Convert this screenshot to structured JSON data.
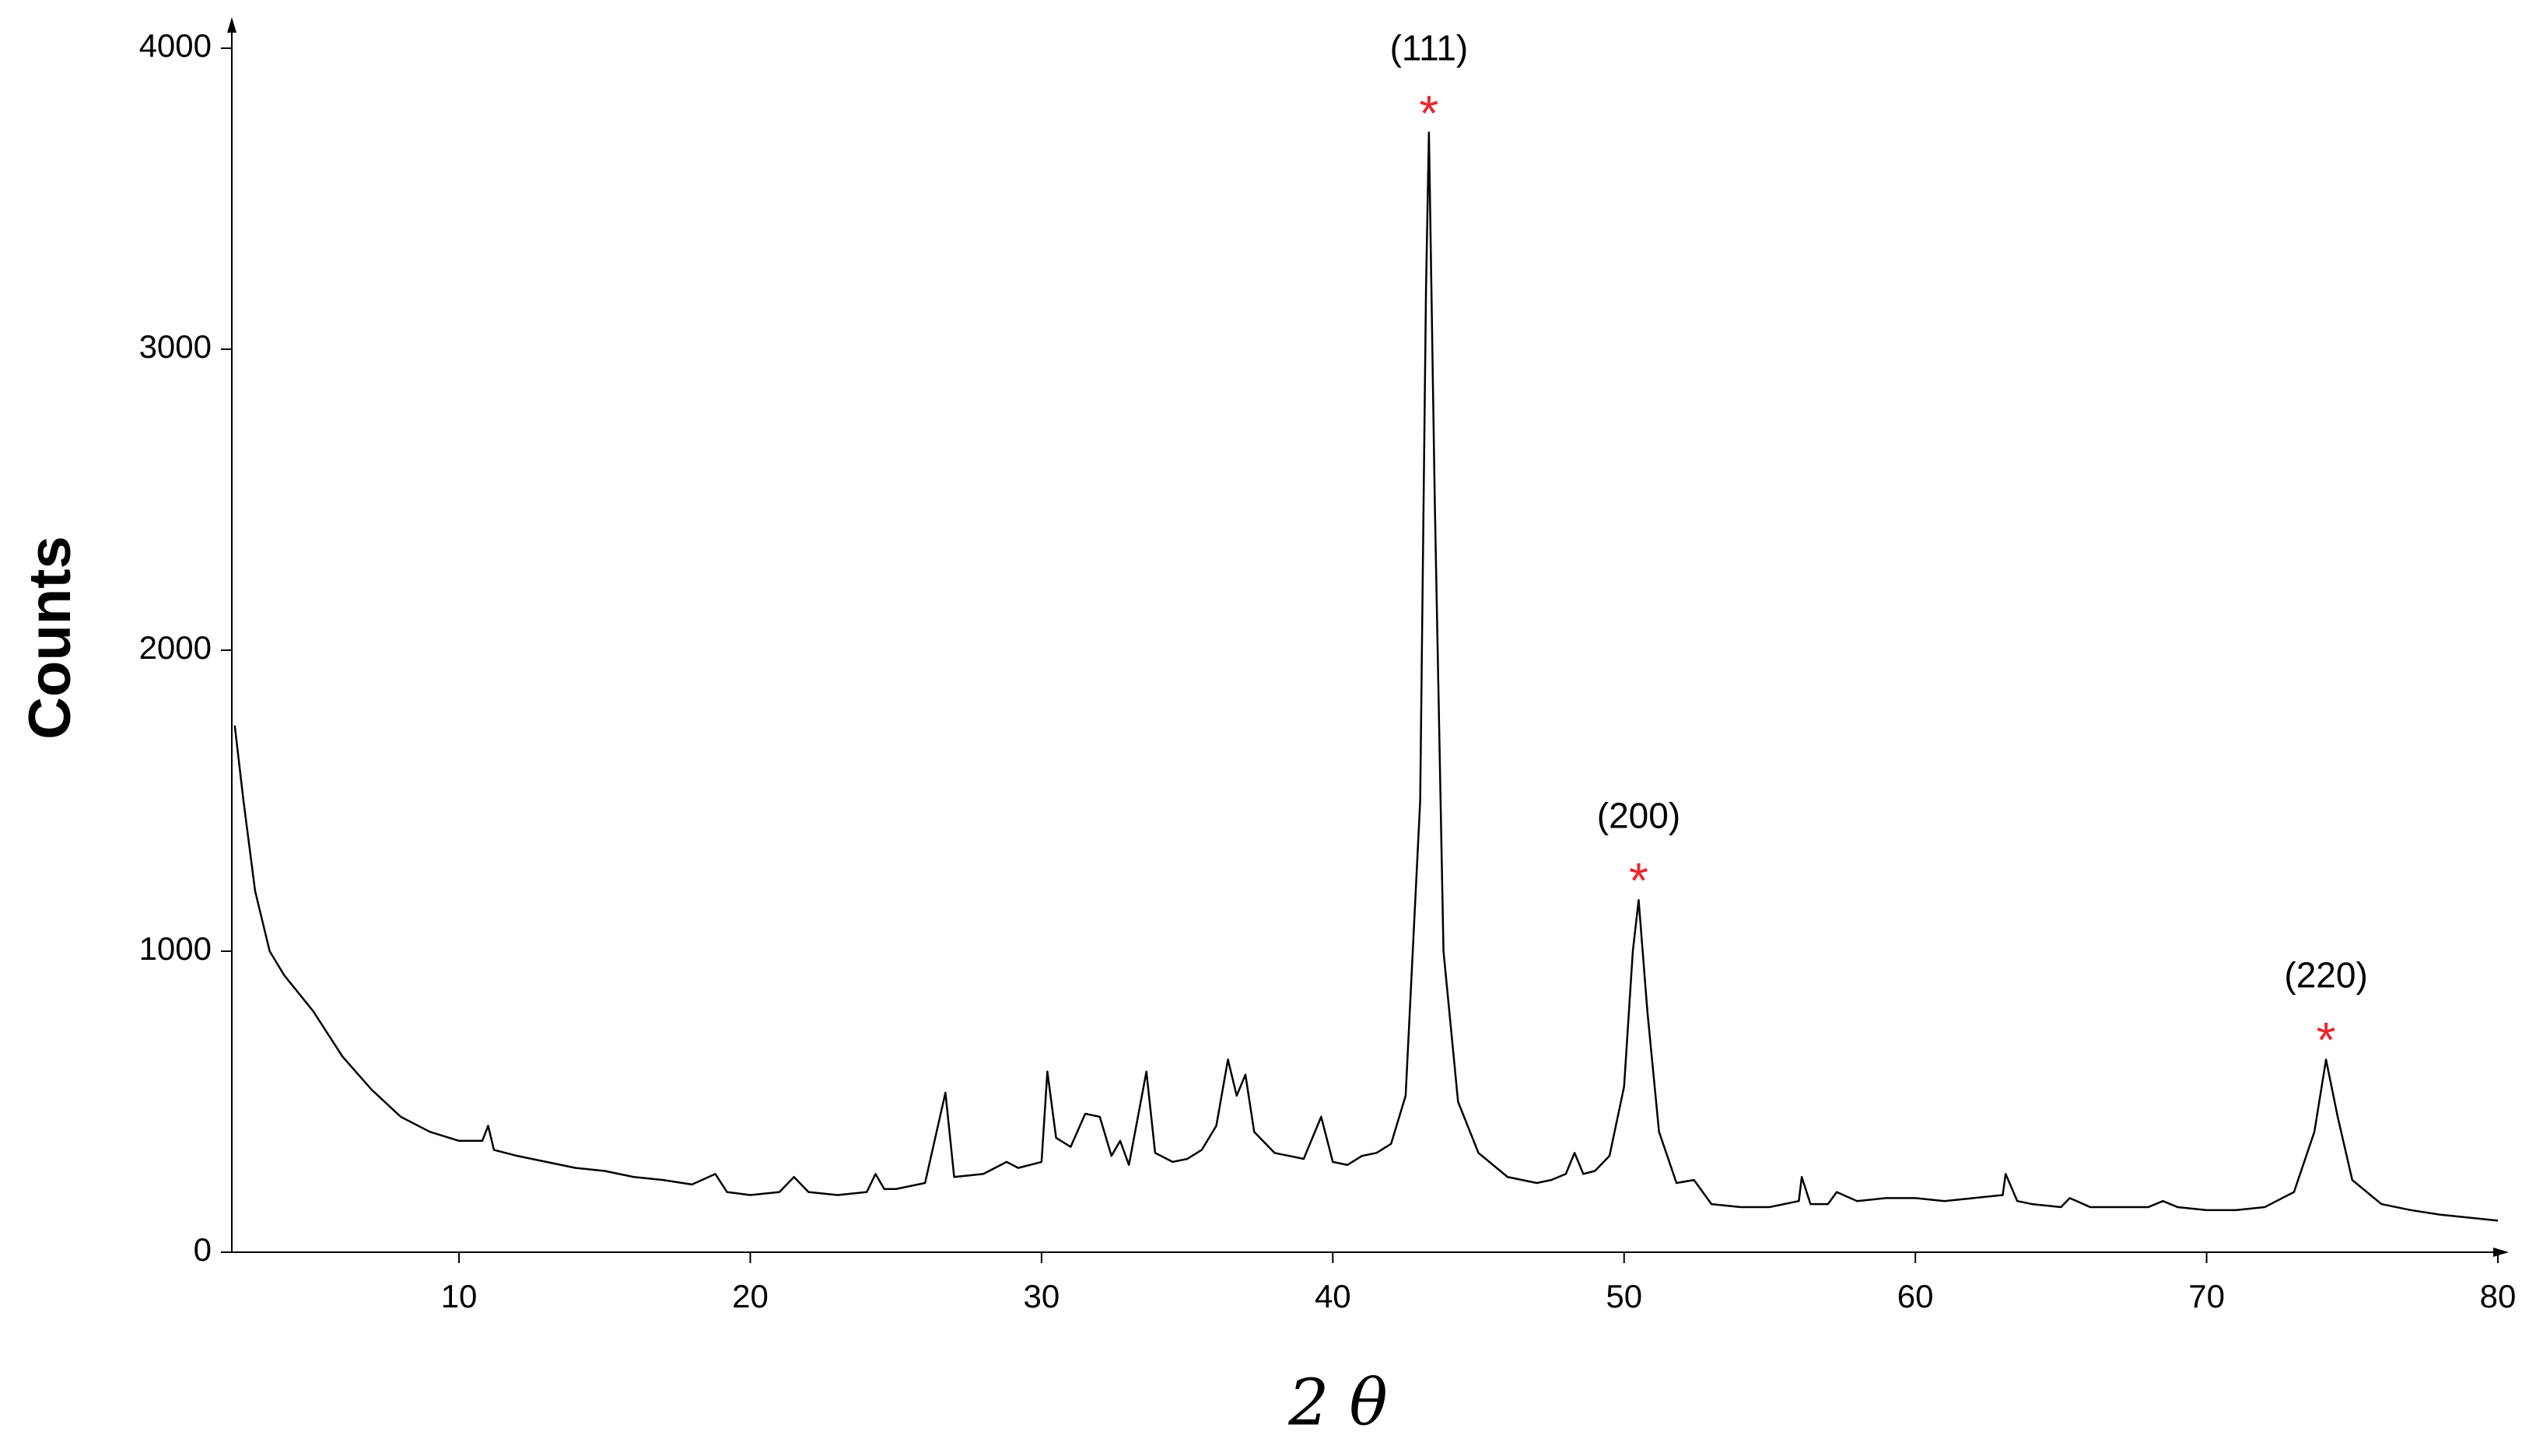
{
  "chart_data": {
    "type": "line",
    "ylabel": "Counts",
    "xlabel": "2 θ",
    "color": "#000000",
    "annotation_color": "#e8282e",
    "xlim": [
      2.2,
      80
    ],
    "ylim": [
      0,
      4000
    ],
    "xticks": [
      10,
      20,
      30,
      40,
      50,
      60,
      70,
      80
    ],
    "yticks": [
      0,
      1000,
      2000,
      3000,
      4000
    ],
    "annotations": [
      {
        "label": "(111)",
        "marker": "*",
        "x": 43.3
      },
      {
        "label": "(200)",
        "marker": "*",
        "x": 50.5
      },
      {
        "label": "(220)",
        "marker": "*",
        "x": 74.1
      }
    ],
    "x": [
      2.3,
      2.6,
      3,
      3.5,
      4,
      5,
      6,
      7,
      8,
      9,
      10,
      10.8,
      11,
      11.2,
      12,
      13,
      14,
      15,
      16,
      17,
      18,
      18.8,
      19.2,
      20,
      21,
      21.5,
      22,
      23,
      24,
      24.3,
      24.6,
      25,
      26,
      26.7,
      27,
      28,
      28.8,
      29.2,
      30,
      30.2,
      30.5,
      31,
      31.5,
      32,
      32.4,
      32.7,
      33,
      33.6,
      33.9,
      34.5,
      35,
      35.5,
      36,
      36.4,
      36.7,
      37,
      37.3,
      38,
      39,
      39.6,
      40,
      40.5,
      41,
      41.5,
      42,
      42.5,
      43,
      43.2,
      43.3,
      43.5,
      43.8,
      44.3,
      45,
      46,
      47,
      47.5,
      48,
      48.3,
      48.6,
      49,
      49.5,
      50,
      50.3,
      50.5,
      50.8,
      51.2,
      51.8,
      52.4,
      53,
      54,
      55,
      56,
      56.1,
      56.4,
      57,
      57.3,
      58,
      59,
      60,
      61,
      62,
      63,
      63.1,
      63.5,
      64,
      65,
      65.3,
      66,
      67,
      68,
      68.5,
      69,
      70,
      71,
      72,
      73,
      73.7,
      74.1,
      74.5,
      75,
      76,
      77,
      78,
      79,
      80
    ],
    "values": [
      1750,
      1500,
      1200,
      1000,
      920,
      800,
      650,
      540,
      450,
      400,
      370,
      370,
      420,
      340,
      320,
      300,
      280,
      270,
      250,
      240,
      225,
      260,
      200,
      190,
      200,
      250,
      200,
      190,
      200,
      260,
      210,
      210,
      230,
      530,
      250,
      260,
      300,
      280,
      300,
      600,
      380,
      350,
      460,
      450,
      320,
      370,
      290,
      600,
      330,
      300,
      310,
      340,
      420,
      640,
      520,
      590,
      400,
      330,
      310,
      450,
      300,
      290,
      320,
      330,
      360,
      520,
      1500,
      3200,
      3720,
      2500,
      1000,
      500,
      330,
      250,
      230,
      240,
      260,
      330,
      260,
      270,
      320,
      550,
      1000,
      1170,
      800,
      400,
      230,
      240,
      160,
      150,
      150,
      170,
      250,
      160,
      160,
      200,
      170,
      180,
      180,
      170,
      180,
      190,
      260,
      170,
      160,
      150,
      180,
      150,
      150,
      150,
      170,
      150,
      140,
      140,
      150,
      200,
      400,
      640,
      450,
      240,
      160,
      140,
      125,
      115,
      105
    ]
  }
}
